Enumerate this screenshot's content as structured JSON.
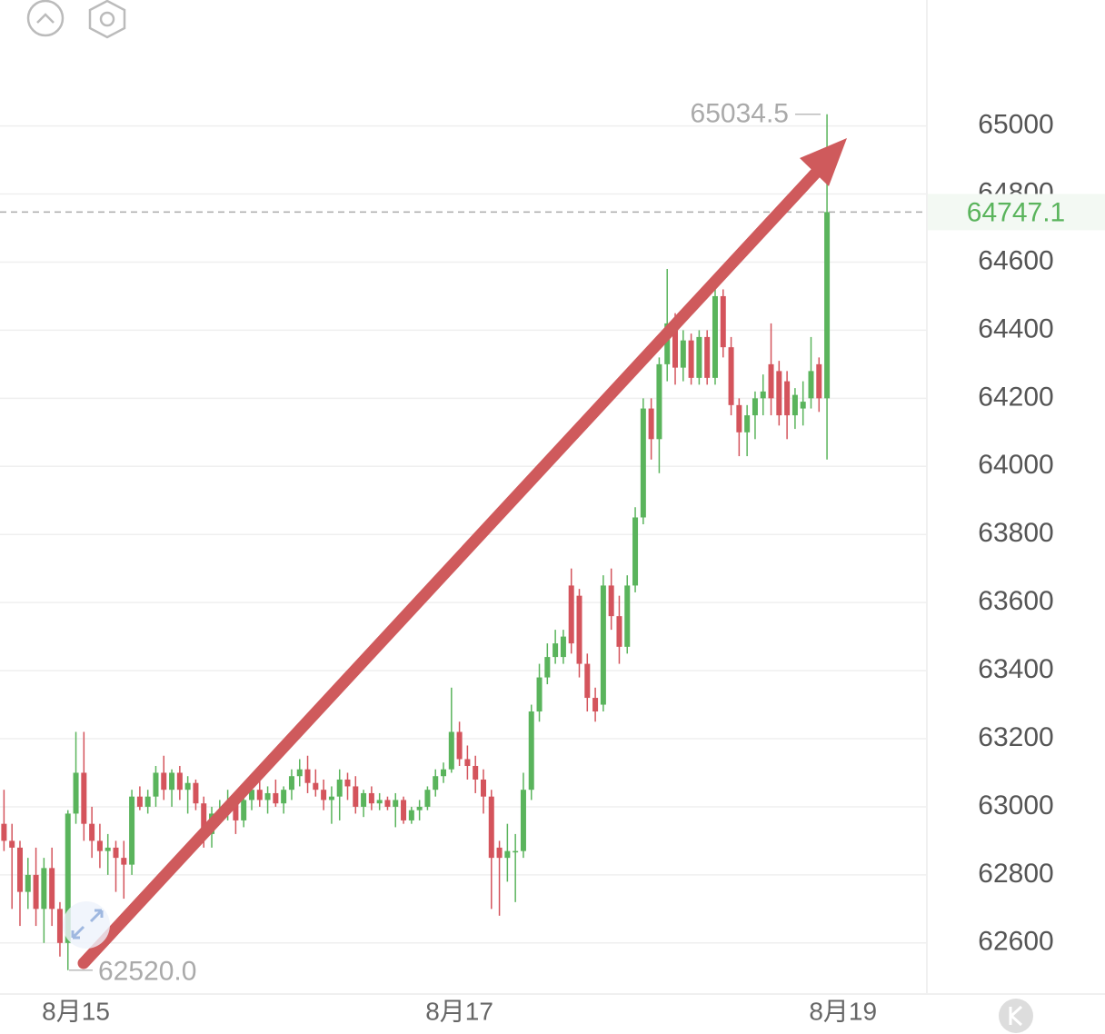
{
  "chart_data": {
    "type": "candlestick",
    "up_color": "#5ab45c",
    "down_color": "#d4545c",
    "ylim": [
      62450,
      65370
    ],
    "xlim": [
      -0.5,
      115.5
    ],
    "yticks": [
      62600,
      62800,
      63000,
      63200,
      63400,
      63600,
      63800,
      64000,
      64200,
      64400,
      64600,
      64800,
      65000
    ],
    "xticks": [
      {
        "value": 9,
        "label": "8月15"
      },
      {
        "value": 57,
        "label": "8月17"
      },
      {
        "value": 105,
        "label": "8月19"
      }
    ],
    "grid": true,
    "last_price": 64747.1,
    "high_label": 65034.5,
    "low_label": {
      "value": 62520,
      "label": "62520.0"
    },
    "ohlc": [
      [
        62950,
        63050,
        62870,
        62900
      ],
      [
        62900,
        62950,
        62700,
        62880
      ],
      [
        62880,
        62900,
        62650,
        62750
      ],
      [
        62750,
        62850,
        62700,
        62800
      ],
      [
        62800,
        62880,
        62650,
        62700
      ],
      [
        62700,
        62850,
        62600,
        62820
      ],
      [
        62820,
        62880,
        62650,
        62700
      ],
      [
        62700,
        62720,
        62560,
        62600
      ],
      [
        62600,
        62990,
        62520,
        62980
      ],
      [
        62980,
        63220,
        62950,
        63100
      ],
      [
        63100,
        63220,
        62900,
        62950
      ],
      [
        62950,
        63000,
        62850,
        62900
      ],
      [
        62900,
        62950,
        62820,
        62870
      ],
      [
        62870,
        62920,
        62800,
        62880
      ],
      [
        62880,
        62900,
        62750,
        62850
      ],
      [
        62850,
        62900,
        62730,
        62830
      ],
      [
        62830,
        63050,
        62800,
        63030
      ],
      [
        63030,
        63060,
        62990,
        63000
      ],
      [
        63000,
        63050,
        62980,
        63030
      ],
      [
        63030,
        63120,
        63000,
        63100
      ],
      [
        63100,
        63150,
        63020,
        63050
      ],
      [
        63050,
        63110,
        63000,
        63100
      ],
      [
        63100,
        63120,
        63020,
        63050
      ],
      [
        63050,
        63090,
        62980,
        63070
      ],
      [
        63070,
        63080,
        62990,
        63010
      ],
      [
        63010,
        63030,
        62880,
        62920
      ],
      [
        62920,
        63000,
        62880,
        62980
      ],
      [
        62980,
        63020,
        62950,
        62990
      ],
      [
        62990,
        63050,
        62960,
        63010
      ],
      [
        63010,
        63040,
        62920,
        62960
      ],
      [
        62960,
        63030,
        62940,
        63020
      ],
      [
        63020,
        63070,
        62990,
        63050
      ],
      [
        63050,
        63090,
        63000,
        63020
      ],
      [
        63020,
        63060,
        62980,
        63040
      ],
      [
        63040,
        63080,
        63000,
        63010
      ],
      [
        63010,
        63060,
        62980,
        63050
      ],
      [
        63050,
        63110,
        63020,
        63090
      ],
      [
        63090,
        63140,
        63060,
        63110
      ],
      [
        63110,
        63150,
        63040,
        63070
      ],
      [
        63070,
        63110,
        63030,
        63050
      ],
      [
        63050,
        63080,
        62990,
        63020
      ],
      [
        63020,
        63060,
        62950,
        63030
      ],
      [
        63030,
        63110,
        62960,
        63080
      ],
      [
        63080,
        63100,
        63020,
        63060
      ],
      [
        63060,
        63090,
        62980,
        63000
      ],
      [
        63000,
        63050,
        62970,
        63040
      ],
      [
        63040,
        63060,
        62990,
        63010
      ],
      [
        63010,
        63040,
        62990,
        63020
      ],
      [
        63020,
        63030,
        62990,
        63000
      ],
      [
        63000,
        63040,
        62940,
        63020
      ],
      [
        63020,
        63030,
        62950,
        62960
      ],
      [
        62960,
        63000,
        62950,
        62990
      ],
      [
        62990,
        63020,
        62960,
        63000
      ],
      [
        63000,
        63060,
        62990,
        63050
      ],
      [
        63050,
        63110,
        63030,
        63090
      ],
      [
        63090,
        63130,
        63070,
        63110
      ],
      [
        63110,
        63350,
        63100,
        63220
      ],
      [
        63220,
        63250,
        63120,
        63140
      ],
      [
        63140,
        63180,
        63080,
        63120
      ],
      [
        63120,
        63150,
        63040,
        63080
      ],
      [
        63080,
        63110,
        62980,
        63030
      ],
      [
        63030,
        63050,
        62700,
        62850
      ],
      [
        62880,
        62900,
        62680,
        62850
      ],
      [
        62850,
        62950,
        62780,
        62870
      ],
      [
        62870,
        62920,
        62720,
        62870
      ],
      [
        62870,
        63100,
        62850,
        63050
      ],
      [
        63050,
        63300,
        63020,
        63280
      ],
      [
        63280,
        63420,
        63250,
        63380
      ],
      [
        63380,
        63480,
        63360,
        63440
      ],
      [
        63440,
        63520,
        63420,
        63480
      ],
      [
        63440,
        63520,
        63420,
        63500
      ],
      [
        63650,
        63700,
        63450,
        63480
      ],
      [
        63620,
        63640,
        63380,
        63420
      ],
      [
        63420,
        63450,
        63280,
        63320
      ],
      [
        63320,
        63350,
        63250,
        63280
      ],
      [
        63300,
        63680,
        63280,
        63650
      ],
      [
        63650,
        63700,
        63520,
        63560
      ],
      [
        63560,
        63620,
        63420,
        63470
      ],
      [
        63470,
        63680,
        63450,
        63650
      ],
      [
        63650,
        63880,
        63630,
        63850
      ],
      [
        63850,
        64200,
        63830,
        64170
      ],
      [
        64170,
        64200,
        64020,
        64080
      ],
      [
        64080,
        64320,
        63980,
        64300
      ],
      [
        64300,
        64580,
        64250,
        64420
      ],
      [
        64420,
        64450,
        64240,
        64290
      ],
      [
        64290,
        64400,
        64250,
        64370
      ],
      [
        64370,
        64390,
        64240,
        64260
      ],
      [
        64260,
        64400,
        64240,
        64380
      ],
      [
        64380,
        64400,
        64240,
        64260
      ],
      [
        64260,
        64540,
        64240,
        64500
      ],
      [
        64500,
        64520,
        64320,
        64350
      ],
      [
        64350,
        64380,
        64150,
        64180
      ],
      [
        64180,
        64200,
        64030,
        64100
      ],
      [
        64100,
        64180,
        64030,
        64150
      ],
      [
        64150,
        64220,
        64080,
        64200
      ],
      [
        64200,
        64270,
        64150,
        64220
      ],
      [
        64300,
        64420,
        64150,
        64200
      ],
      [
        64280,
        64310,
        64120,
        64150
      ],
      [
        64250,
        64280,
        64080,
        64150
      ],
      [
        64150,
        64230,
        64110,
        64210
      ],
      [
        64170,
        64250,
        64120,
        64190
      ],
      [
        64200,
        64380,
        64170,
        64280
      ],
      [
        64300,
        64320,
        64160,
        64200
      ],
      [
        64200,
        65034.5,
        64020,
        64747.1
      ]
    ]
  }
}
